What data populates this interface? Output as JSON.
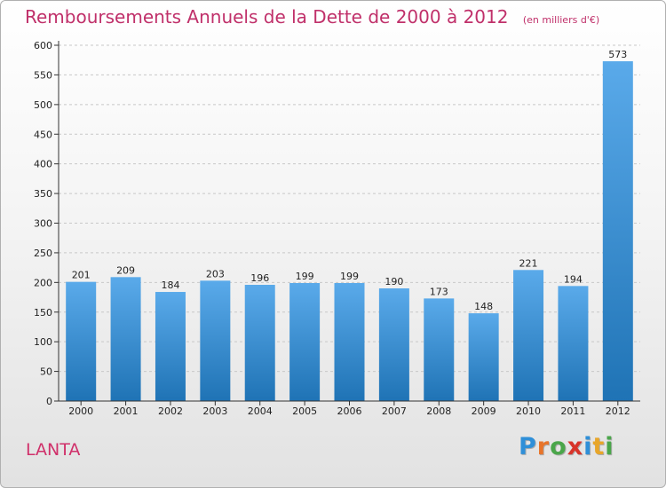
{
  "header": {
    "title": "Remboursements Annuels de la Dette de 2000 à 2012",
    "unit": "(en milliers d'€)"
  },
  "commune": "LANTA",
  "logo": {
    "letters": [
      "P",
      "r",
      "o",
      "x",
      "i",
      "t",
      "i"
    ],
    "colors": [
      "#2f8fd8",
      "#e8742a",
      "#4aa64a",
      "#d8342a",
      "#2f8fd8",
      "#e8a62a",
      "#4aa64a"
    ]
  },
  "colors": {
    "bar_top": "#5aaaea",
    "bar_bottom": "#1f73b5",
    "title": "#c0306a"
  },
  "chart_data": {
    "type": "bar",
    "title": "Remboursements Annuels de la Dette de 2000 à 2012",
    "subtitle": "(en milliers d'€)",
    "categories": [
      "2000",
      "2001",
      "2002",
      "2003",
      "2004",
      "2005",
      "2006",
      "2007",
      "2008",
      "2009",
      "2010",
      "2011",
      "2012"
    ],
    "values": [
      201,
      209,
      184,
      203,
      196,
      199,
      199,
      190,
      173,
      148,
      221,
      194,
      573
    ],
    "ylim": [
      0,
      600
    ],
    "yticks": [
      0,
      50,
      100,
      150,
      200,
      250,
      300,
      350,
      400,
      450,
      500,
      550,
      600
    ],
    "grid": true,
    "legend": "none"
  }
}
